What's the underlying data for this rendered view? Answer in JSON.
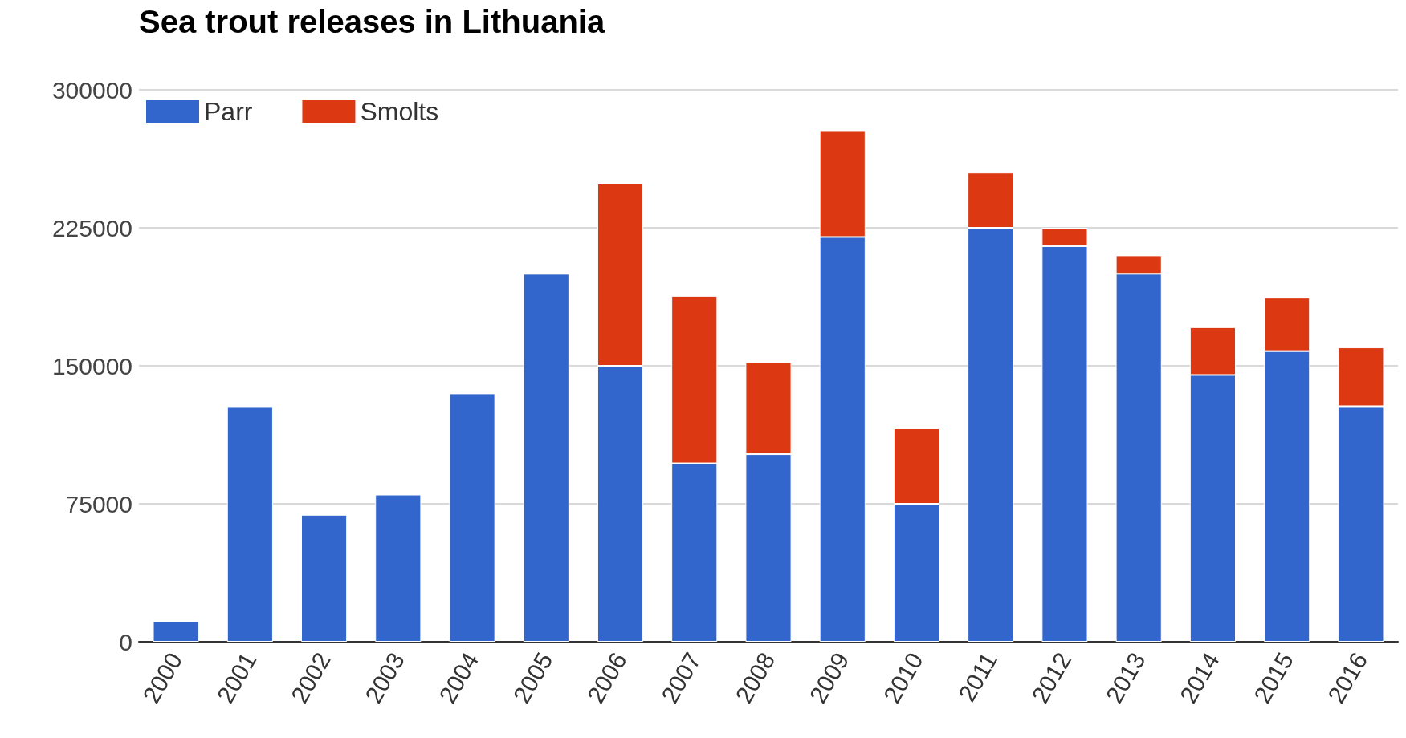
{
  "chart_data": {
    "type": "bar",
    "title": "Sea trout releases in Lithuania",
    "stacked": true,
    "categories": [
      "2000",
      "2001",
      "2002",
      "2003",
      "2004",
      "2005",
      "2006",
      "2007",
      "2008",
      "2009",
      "2010",
      "2011",
      "2012",
      "2013",
      "2014",
      "2015",
      "2016"
    ],
    "series": [
      {
        "name": "Parr",
        "color": "#3366cc",
        "values": [
          11000,
          128000,
          69000,
          80000,
          135000,
          200000,
          150000,
          97000,
          102000,
          220000,
          75000,
          225000,
          215000,
          200000,
          145000,
          158000,
          128000
        ]
      },
      {
        "name": "Smolts",
        "color": "#dc3912",
        "values": [
          null,
          null,
          null,
          null,
          null,
          null,
          99000,
          91000,
          50000,
          58000,
          41000,
          30000,
          10000,
          10000,
          26000,
          29000,
          32000
        ]
      }
    ],
    "ylim": [
      0,
      300000
    ],
    "yticks": [
      0,
      75000,
      150000,
      225000,
      300000
    ],
    "grid": "y",
    "legend": "top left"
  }
}
